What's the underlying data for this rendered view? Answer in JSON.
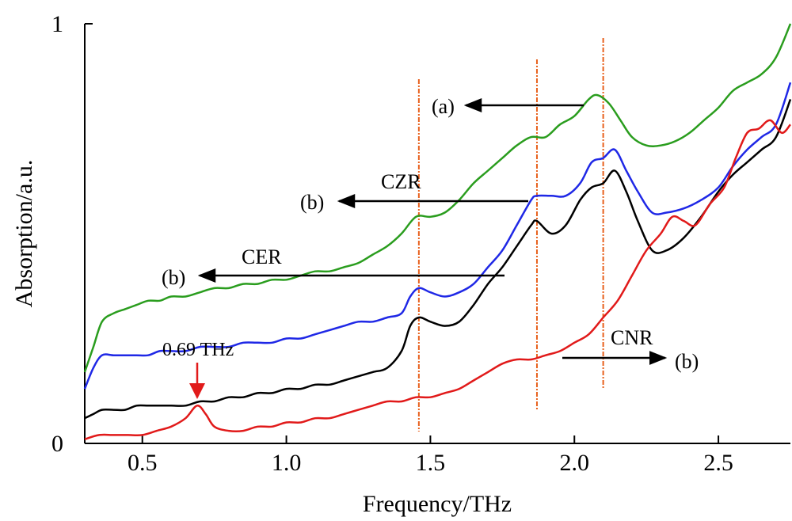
{
  "chart_data": {
    "type": "line",
    "xlabel": "Frequency/THz",
    "ylabel": "Absorption/a.u.",
    "xlim": [
      0.3,
      2.75
    ],
    "ylim": [
      0,
      1
    ],
    "x_ticks": [
      "0.5",
      "1.0",
      "1.5",
      "2.0",
      "2.5"
    ],
    "y_ticks": [
      "0",
      "1"
    ],
    "grid": false,
    "series": [
      {
        "color": "#2a9d1e",
        "x": [
          0.3,
          0.33,
          0.36,
          0.4,
          0.44,
          0.48,
          0.52,
          0.56,
          0.6,
          0.65,
          0.7,
          0.75,
          0.8,
          0.85,
          0.9,
          0.95,
          1.0,
          1.05,
          1.1,
          1.15,
          1.2,
          1.25,
          1.3,
          1.35,
          1.4,
          1.45,
          1.5,
          1.55,
          1.6,
          1.65,
          1.7,
          1.75,
          1.8,
          1.85,
          1.9,
          1.95,
          2.0,
          2.05,
          2.08,
          2.12,
          2.16,
          2.2,
          2.25,
          2.3,
          2.35,
          2.4,
          2.45,
          2.5,
          2.55,
          2.6,
          2.65,
          2.7,
          2.75
        ],
        "y": [
          0.17,
          0.23,
          0.29,
          0.31,
          0.32,
          0.33,
          0.34,
          0.34,
          0.35,
          0.35,
          0.36,
          0.37,
          0.37,
          0.38,
          0.38,
          0.39,
          0.39,
          0.4,
          0.41,
          0.41,
          0.42,
          0.43,
          0.45,
          0.47,
          0.5,
          0.54,
          0.54,
          0.55,
          0.58,
          0.62,
          0.65,
          0.68,
          0.71,
          0.73,
          0.73,
          0.76,
          0.78,
          0.82,
          0.83,
          0.81,
          0.77,
          0.73,
          0.71,
          0.71,
          0.72,
          0.74,
          0.77,
          0.8,
          0.84,
          0.86,
          0.88,
          0.92,
          1.0
        ]
      },
      {
        "color": "#1f28e6",
        "x": [
          0.3,
          0.33,
          0.36,
          0.4,
          0.44,
          0.48,
          0.52,
          0.56,
          0.6,
          0.65,
          0.7,
          0.75,
          0.8,
          0.85,
          0.9,
          0.95,
          1.0,
          1.05,
          1.1,
          1.15,
          1.2,
          1.25,
          1.3,
          1.35,
          1.4,
          1.43,
          1.46,
          1.5,
          1.55,
          1.6,
          1.65,
          1.7,
          1.75,
          1.8,
          1.85,
          1.87,
          1.92,
          1.97,
          2.02,
          2.06,
          2.1,
          2.14,
          2.18,
          2.22,
          2.27,
          2.32,
          2.38,
          2.44,
          2.5,
          2.55,
          2.6,
          2.65,
          2.7,
          2.75
        ],
        "y": [
          0.13,
          0.18,
          0.21,
          0.21,
          0.21,
          0.21,
          0.21,
          0.22,
          0.22,
          0.22,
          0.23,
          0.23,
          0.23,
          0.24,
          0.24,
          0.24,
          0.25,
          0.25,
          0.26,
          0.27,
          0.28,
          0.29,
          0.29,
          0.3,
          0.31,
          0.35,
          0.37,
          0.36,
          0.35,
          0.36,
          0.38,
          0.42,
          0.46,
          0.52,
          0.58,
          0.59,
          0.59,
          0.59,
          0.62,
          0.67,
          0.68,
          0.7,
          0.65,
          0.6,
          0.55,
          0.55,
          0.56,
          0.58,
          0.61,
          0.66,
          0.7,
          0.73,
          0.76,
          0.86
        ]
      },
      {
        "color": "#000000",
        "x": [
          0.3,
          0.33,
          0.36,
          0.4,
          0.44,
          0.48,
          0.52,
          0.56,
          0.6,
          0.65,
          0.7,
          0.75,
          0.8,
          0.85,
          0.9,
          0.95,
          1.0,
          1.05,
          1.1,
          1.15,
          1.2,
          1.25,
          1.3,
          1.35,
          1.4,
          1.43,
          1.46,
          1.5,
          1.55,
          1.6,
          1.65,
          1.7,
          1.75,
          1.8,
          1.85,
          1.87,
          1.92,
          1.97,
          2.02,
          2.06,
          2.1,
          2.14,
          2.18,
          2.22,
          2.27,
          2.32,
          2.38,
          2.44,
          2.5,
          2.55,
          2.6,
          2.65,
          2.7,
          2.75
        ],
        "y": [
          0.06,
          0.07,
          0.08,
          0.08,
          0.08,
          0.09,
          0.09,
          0.09,
          0.09,
          0.09,
          0.1,
          0.1,
          0.11,
          0.11,
          0.12,
          0.12,
          0.13,
          0.13,
          0.14,
          0.14,
          0.15,
          0.16,
          0.17,
          0.18,
          0.22,
          0.28,
          0.3,
          0.29,
          0.28,
          0.29,
          0.33,
          0.38,
          0.42,
          0.47,
          0.52,
          0.53,
          0.5,
          0.52,
          0.58,
          0.61,
          0.62,
          0.65,
          0.6,
          0.53,
          0.46,
          0.46,
          0.49,
          0.54,
          0.6,
          0.64,
          0.67,
          0.7,
          0.73,
          0.82
        ]
      },
      {
        "color": "#e11a1a",
        "x": [
          0.3,
          0.35,
          0.4,
          0.45,
          0.5,
          0.55,
          0.6,
          0.65,
          0.69,
          0.72,
          0.75,
          0.8,
          0.85,
          0.9,
          0.95,
          1.0,
          1.05,
          1.1,
          1.15,
          1.2,
          1.25,
          1.3,
          1.35,
          1.4,
          1.45,
          1.5,
          1.55,
          1.6,
          1.65,
          1.7,
          1.75,
          1.8,
          1.85,
          1.9,
          1.95,
          2.0,
          2.05,
          2.1,
          2.15,
          2.2,
          2.25,
          2.3,
          2.34,
          2.38,
          2.42,
          2.47,
          2.52,
          2.56,
          2.6,
          2.64,
          2.68,
          2.72,
          2.75
        ],
        "y": [
          0.01,
          0.02,
          0.02,
          0.02,
          0.02,
          0.03,
          0.04,
          0.06,
          0.09,
          0.07,
          0.04,
          0.03,
          0.03,
          0.04,
          0.04,
          0.05,
          0.05,
          0.06,
          0.06,
          0.07,
          0.08,
          0.09,
          0.1,
          0.1,
          0.11,
          0.11,
          0.12,
          0.13,
          0.15,
          0.17,
          0.19,
          0.2,
          0.2,
          0.21,
          0.22,
          0.24,
          0.26,
          0.3,
          0.34,
          0.4,
          0.46,
          0.5,
          0.54,
          0.53,
          0.52,
          0.57,
          0.61,
          0.68,
          0.74,
          0.75,
          0.77,
          0.74,
          0.76
        ]
      }
    ],
    "vertical_lines": [
      1.46,
      1.87,
      2.1
    ],
    "annotations": {
      "a_label": "(a)",
      "czr": "CZR",
      "czr_b": "(b)",
      "cer": "CER",
      "cer_b": "(b)",
      "cnr": "CNR",
      "cnr_b": "(b)",
      "peak": "0.69 THz"
    },
    "annotation_colors": {
      "arrow": "#000000",
      "peak_arrow": "#e11a1a",
      "vertical_line": "#e8601c"
    }
  }
}
